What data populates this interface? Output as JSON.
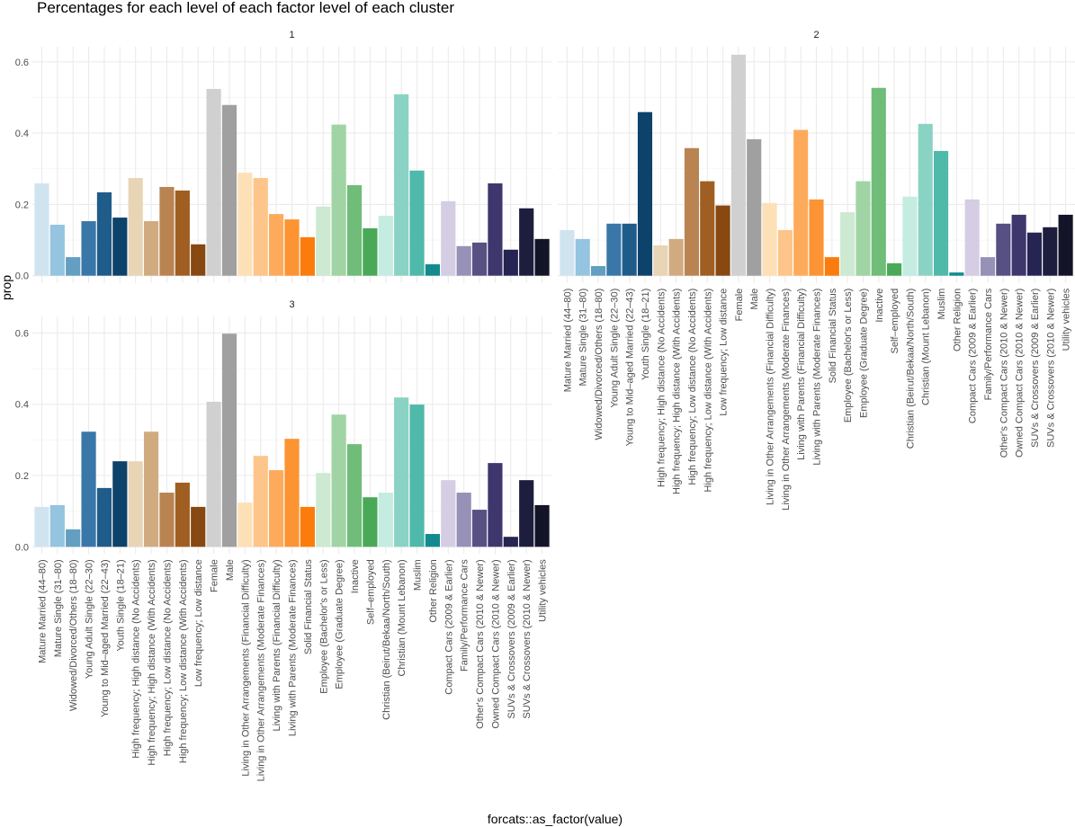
{
  "chart_data": {
    "type": "bar",
    "title": "Percentages for each level of each factor level of each cluster",
    "xlabel": "forcats::as_factor(value)",
    "ylabel": "prop",
    "ylim": [
      0,
      0.62
    ],
    "yticks": [
      0.0,
      0.2,
      0.4,
      0.6
    ],
    "ytick_labels": [
      "0.0",
      "0.2",
      "0.4",
      "0.6"
    ],
    "grid": true,
    "legend": "none",
    "facet_layout": "2x2 wrap (3 panels)",
    "categories": [
      "Mature Married (44–80)",
      "Mature Single (31–80)",
      "Widowed/Divorced/Others (18–80)",
      "Young Adult Single (22–30)",
      "Young to Mid–aged Married (22–43)",
      "Youth Single (18–21)",
      "High frequency; High distance (No Accidents)",
      "High frequency; High distance (With Accidents)",
      "High frequency; Low distance (No Accidents)",
      "High frequency; Low distance (With Accidents)",
      "Low frequency; Low distance",
      "Female",
      "Male",
      "Living in Other Arrangements (Financial Difficulty)",
      "Living in Other Arrangements (Moderate Finances)",
      "Living with Parents (Financial Difficulty)",
      "Living with Parents (Moderate Finances)",
      "Solid Financial Status",
      "Employee (Bachelor's or Less)",
      "Employee (Graduate Degree)",
      "Inactive",
      "Self–employed",
      "Christian (Beirut/Bekaa/North/South)",
      "Christian (Mount Lebanon)",
      "Muslim",
      "Other Religion",
      "Compact Cars (2009 & Earlier)",
      "Family/Performance Cars",
      "Other's Compact Cars (2010 & Newer)",
      "Owned Compact Cars (2010 & Newer)",
      "SUVs & Crossovers (2009 & Earlier)",
      "SUVs & Crossovers (2010 & Newer)",
      "Utility vehicles"
    ],
    "colors": [
      "#d0e4f0",
      "#94c4df",
      "#629fc0",
      "#3a77a9",
      "#205c8a",
      "#0d426a",
      "#e8d5b5",
      "#d1ab80",
      "#b98452",
      "#a05e22",
      "#874811",
      "#d0d0d0",
      "#a0a0a0",
      "#fde0b6",
      "#fdc589",
      "#fdab5b",
      "#fc9433",
      "#fb7c0c",
      "#cde9d1",
      "#a1d4a4",
      "#70bc79",
      "#49a957",
      "#c5ece0",
      "#8ad3c4",
      "#4fb9aa",
      "#138b8e",
      "#d4cde4",
      "#9790b7",
      "#575083",
      "#3e376e",
      "#262452",
      "#1d1d3e",
      "#141428"
    ],
    "panels": [
      {
        "name": "1",
        "values": [
          0.259,
          0.143,
          0.052,
          0.153,
          0.234,
          0.163,
          0.274,
          0.153,
          0.249,
          0.239,
          0.088,
          0.524,
          0.479,
          0.289,
          0.274,
          0.173,
          0.158,
          0.108,
          0.194,
          0.424,
          0.254,
          0.133,
          0.168,
          0.509,
          0.295,
          0.032,
          0.209,
          0.083,
          0.093,
          0.259,
          0.073,
          0.189,
          0.103
        ]
      },
      {
        "name": "2",
        "values": [
          0.128,
          0.103,
          0.027,
          0.146,
          0.146,
          0.459,
          0.085,
          0.103,
          0.358,
          0.265,
          0.197,
          0.62,
          0.383,
          0.204,
          0.128,
          0.409,
          0.214,
          0.052,
          0.178,
          0.265,
          0.527,
          0.035,
          0.222,
          0.426,
          0.35,
          0.009,
          0.214,
          0.052,
          0.146,
          0.171,
          0.121,
          0.136,
          0.171
        ]
      },
      {
        "name": "3",
        "values": [
          0.112,
          0.117,
          0.049,
          0.323,
          0.165,
          0.24,
          0.24,
          0.323,
          0.152,
          0.18,
          0.112,
          0.407,
          0.598,
          0.124,
          0.255,
          0.215,
          0.303,
          0.112,
          0.207,
          0.371,
          0.288,
          0.139,
          0.152,
          0.419,
          0.399,
          0.036,
          0.187,
          0.152,
          0.104,
          0.235,
          0.028,
          0.187,
          0.117
        ]
      }
    ]
  }
}
